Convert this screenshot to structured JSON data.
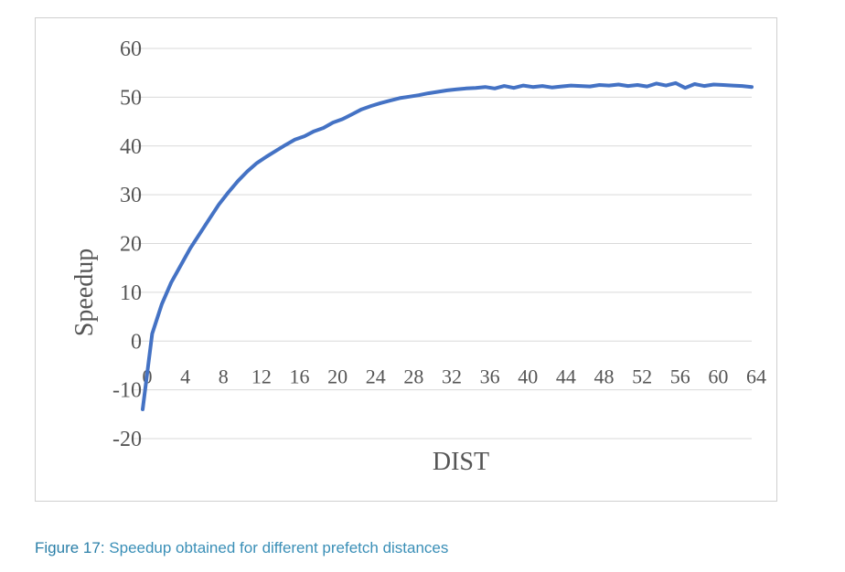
{
  "caption": {
    "label": "Figure 17:",
    "text": " Speedup obtained for different prefetch distances"
  },
  "colors": {
    "series": "#4472c4",
    "grid": "#d9d9d9",
    "text": "#555555",
    "caption": "#3a8fb7"
  },
  "chart_data": {
    "type": "line",
    "title": "",
    "xlabel": "DIST",
    "ylabel": "Speedup",
    "xlim": [
      0,
      64
    ],
    "ylim": [
      -20,
      60
    ],
    "yticks": [
      -20,
      -10,
      0,
      10,
      20,
      30,
      40,
      50,
      60
    ],
    "xticks": [
      0,
      4,
      8,
      12,
      16,
      20,
      24,
      28,
      32,
      36,
      40,
      44,
      48,
      52,
      56,
      60,
      64
    ],
    "grid": "horizontal",
    "legend": "none",
    "series": [
      {
        "x": [
          0,
          1,
          2,
          3,
          4,
          5,
          6,
          7,
          8,
          9,
          10,
          11,
          12,
          13,
          14,
          15,
          16,
          17,
          18,
          19,
          20,
          21,
          22,
          23,
          24,
          25,
          26,
          27,
          28,
          29,
          30,
          31,
          32,
          33,
          34,
          35,
          36,
          37,
          38,
          39,
          40,
          41,
          42,
          43,
          44,
          45,
          46,
          47,
          48,
          49,
          50,
          51,
          52,
          53,
          54,
          55,
          56,
          57,
          58,
          59,
          60,
          61,
          62,
          63,
          64
        ],
        "values": [
          -14,
          1.5,
          7.5,
          12,
          15.5,
          19,
          22,
          25,
          28,
          30.5,
          32.8,
          34.8,
          36.5,
          37.8,
          39,
          40.2,
          41.3,
          42,
          43,
          43.7,
          44.8,
          45.5,
          46.5,
          47.5,
          48.2,
          48.8,
          49.3,
          49.8,
          50.1,
          50.4,
          50.8,
          51.1,
          51.4,
          51.6,
          51.8,
          51.9,
          52.1,
          51.8,
          52.3,
          51.9,
          52.4,
          52.1,
          52.3,
          52.0,
          52.2,
          52.4,
          52.3,
          52.2,
          52.5,
          52.4,
          52.6,
          52.3,
          52.5,
          52.2,
          52.8,
          52.4,
          52.9,
          51.9,
          52.7,
          52.3,
          52.6,
          52.5,
          52.4,
          52.3,
          52.1
        ]
      }
    ]
  }
}
